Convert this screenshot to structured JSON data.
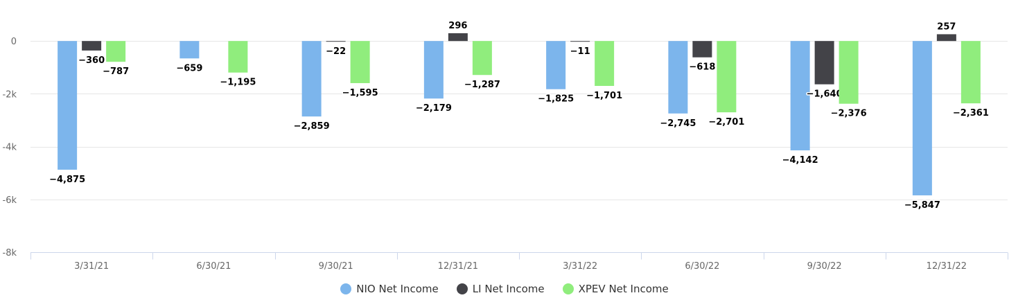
{
  "chart_data": {
    "type": "bar",
    "categories": [
      "3/31/21",
      "6/30/21",
      "9/30/21",
      "12/31/21",
      "3/31/22",
      "6/30/22",
      "9/30/22",
      "12/31/22"
    ],
    "series": [
      {
        "name": "NIO Net Income",
        "color": "#7cb5ec",
        "values": [
          -4875,
          -659,
          -2859,
          -2179,
          -1825,
          -2745,
          -4142,
          -5847
        ],
        "labels": [
          "−4,875",
          "−659",
          "−2,859",
          "−2,179",
          "−1,825",
          "−2,745",
          "−4,142",
          "−5,847"
        ]
      },
      {
        "name": "LI Net Income",
        "color": "#434348",
        "values": [
          -360,
          null,
          -22,
          296,
          -11,
          -618,
          -1640,
          257
        ],
        "labels": [
          "−360",
          "",
          "−22",
          "296",
          "−11",
          "−618",
          "−1,640",
          "257"
        ]
      },
      {
        "name": "XPEV Net Income",
        "color": "#90ed7d",
        "values": [
          -787,
          -1195,
          -1595,
          -1287,
          -1701,
          -2701,
          -2376,
          -2361
        ],
        "labels": [
          "−787",
          "−1,195",
          "−1,595",
          "−1,287",
          "−1,701",
          "−2,701",
          "−2,376",
          "−2,361"
        ]
      }
    ],
    "y_ticks": [
      {
        "value": 0,
        "label": "0"
      },
      {
        "value": -2000,
        "label": "-2k"
      },
      {
        "value": -4000,
        "label": "-4k"
      },
      {
        "value": -6000,
        "label": "-6k"
      },
      {
        "value": -8000,
        "label": "-8k"
      }
    ],
    "ylim": [
      -8000,
      2000
    ],
    "grid": true,
    "legend_position": "bottom-center"
  }
}
